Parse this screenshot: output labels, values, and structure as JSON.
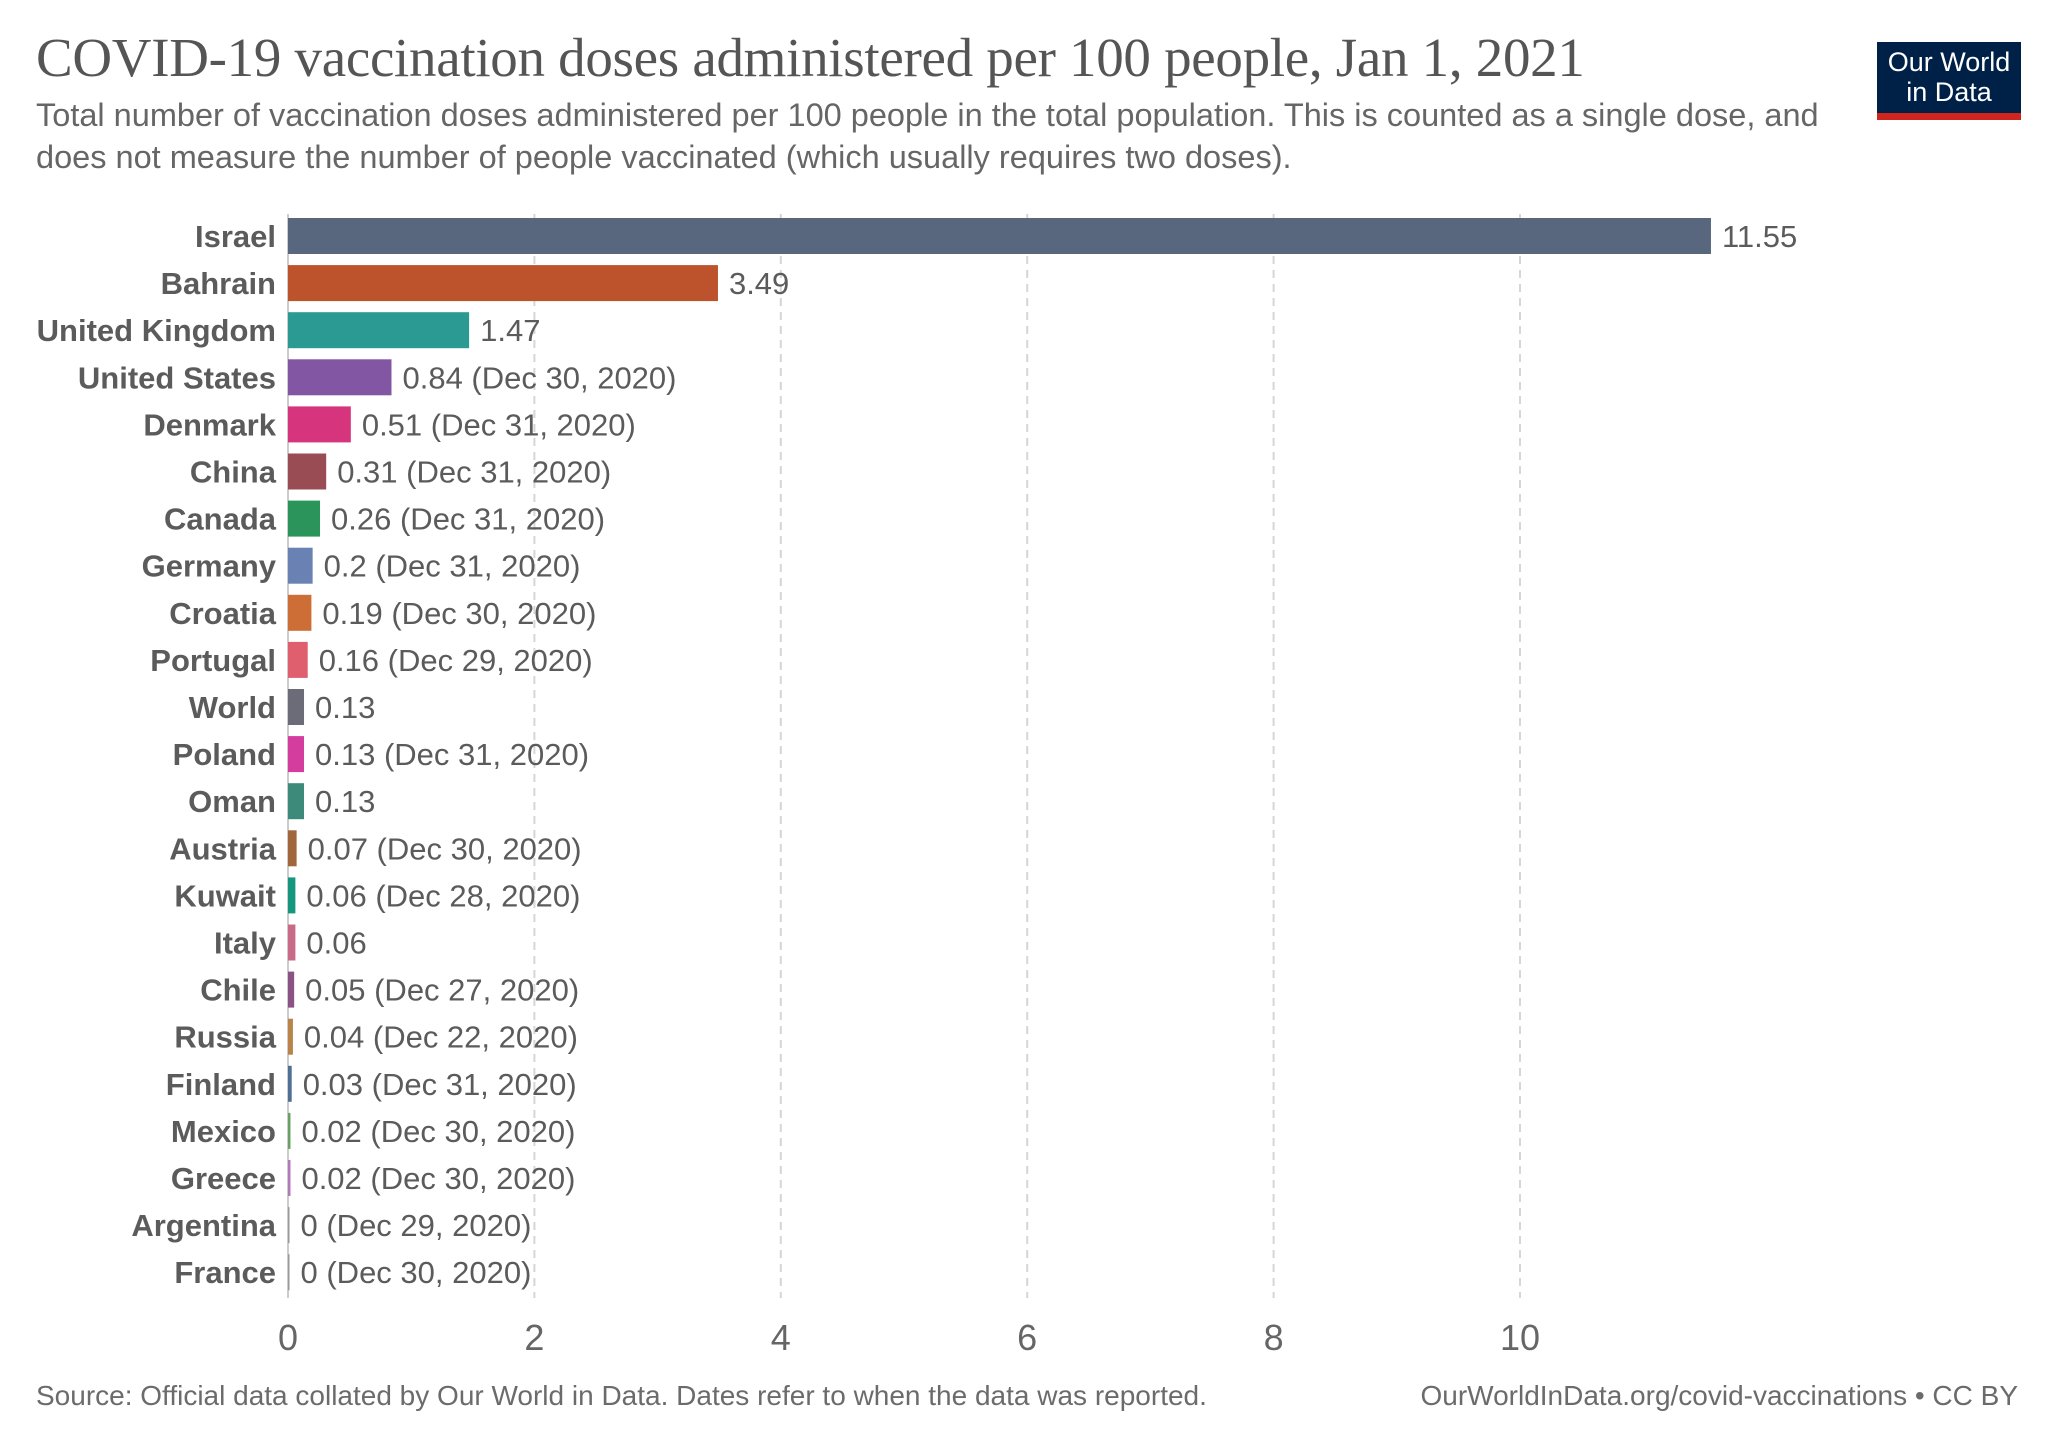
{
  "title": "COVID-19 vaccination doses administered per 100 people, Jan 1, 2021",
  "subtitle": "Total number of vaccination doses administered per 100 people in the total population. This is counted as a single dose, and does not measure the number of people vaccinated (which usually requires two doses).",
  "logo": {
    "line1": "Our World",
    "line2": "in Data",
    "background": "#002147",
    "accent": "#ce261e"
  },
  "footer": {
    "source": "Source: Official data collated by Our World in Data. Dates refer to when the data was reported.",
    "url": "OurWorldInData.org/covid-vaccinations • CC BY"
  },
  "chart_data": {
    "type": "bar",
    "orientation": "horizontal",
    "title": "COVID-19 vaccination doses administered per 100 people, Jan 1, 2021",
    "xlabel": "",
    "ylabel": "",
    "xlim": [
      0,
      11.55
    ],
    "xticks": [
      0,
      2,
      4,
      6,
      8,
      10
    ],
    "grid": "vertical dashed",
    "legend": "none",
    "categories": [
      "Israel",
      "Bahrain",
      "United Kingdom",
      "United States",
      "Denmark",
      "China",
      "Canada",
      "Germany",
      "Croatia",
      "Portugal",
      "World",
      "Poland",
      "Oman",
      "Austria",
      "Kuwait",
      "Italy",
      "Chile",
      "Russia",
      "Finland",
      "Mexico",
      "Greece",
      "Argentina",
      "France"
    ],
    "values": [
      11.55,
      3.49,
      1.47,
      0.84,
      0.51,
      0.31,
      0.26,
      0.2,
      0.19,
      0.16,
      0.13,
      0.13,
      0.13,
      0.07,
      0.06,
      0.06,
      0.05,
      0.04,
      0.03,
      0.02,
      0.02,
      0,
      0
    ],
    "data_labels": [
      "11.55",
      "3.49",
      "1.47",
      "0.84 (Dec 30, 2020)",
      "0.51 (Dec 31, 2020)",
      "0.31 (Dec 31, 2020)",
      "0.26 (Dec 31, 2020)",
      "0.2 (Dec 31, 2020)",
      "0.19 (Dec 30, 2020)",
      "0.16 (Dec 29, 2020)",
      "0.13",
      "0.13 (Dec 31, 2020)",
      "0.13",
      "0.07 (Dec 30, 2020)",
      "0.06 (Dec 28, 2020)",
      "0.06",
      "0.05 (Dec 27, 2020)",
      "0.04 (Dec 22, 2020)",
      "0.03 (Dec 31, 2020)",
      "0.02 (Dec 30, 2020)",
      "0.02 (Dec 30, 2020)",
      "0 (Dec 29, 2020)",
      "0 (Dec 30, 2020)"
    ],
    "colors": [
      "#58677d",
      "#bc532c",
      "#2a9a93",
      "#8356a4",
      "#d7347e",
      "#9a4c55",
      "#2a945b",
      "#6a82b3",
      "#cc6e36",
      "#df5f6f",
      "#6c6c78",
      "#d43c9d",
      "#3d8a7b",
      "#a0673d",
      "#17967e",
      "#c86b87",
      "#8a5384",
      "#b8844a",
      "#4f6f94",
      "#69a064",
      "#b07ab8",
      "#999999",
      "#999999"
    ]
  }
}
